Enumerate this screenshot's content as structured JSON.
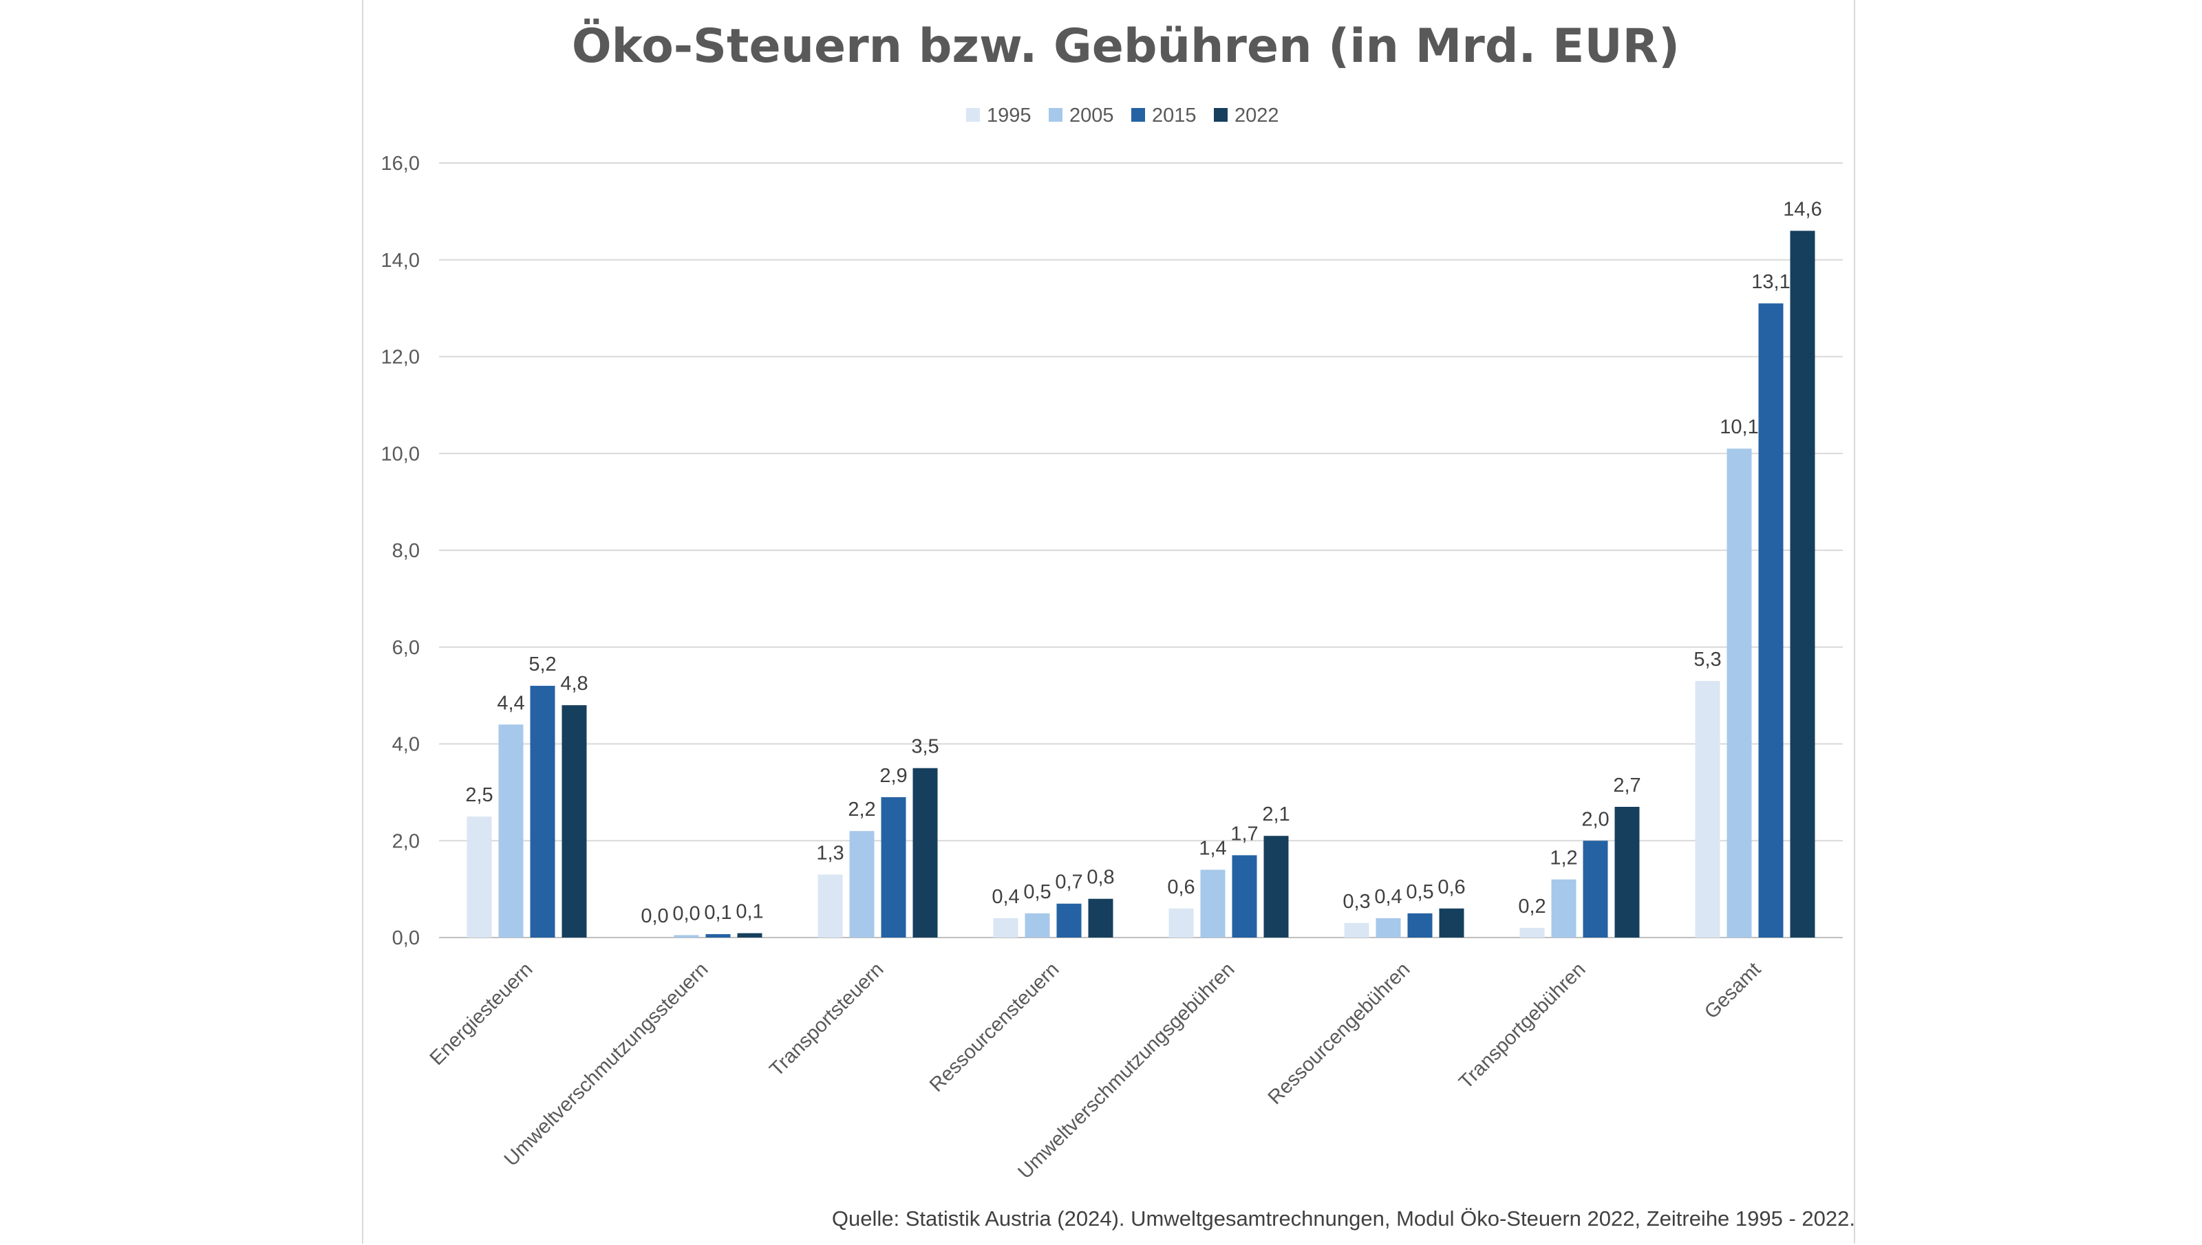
{
  "chart_data": {
    "type": "bar",
    "title": "Öko-Steuern bzw. Gebühren (in Mrd. EUR)",
    "categories": [
      "Energiesteuern",
      "Umweltverschmutzungssteuern",
      "Transportsteuern",
      "Ressourcensteuern",
      "Umweltverschmutzungsgebühren",
      "Ressourcengebühren",
      "Transportgebühren",
      "Gesamt"
    ],
    "series": [
      {
        "name": "1995",
        "color": "#dae6f4",
        "values": [
          2.5,
          0.0,
          1.3,
          0.4,
          0.6,
          0.3,
          0.2,
          5.3
        ],
        "labels": [
          "2,5",
          "0,0",
          "1,3",
          "0,4",
          "0,6",
          "0,3",
          "0,2",
          "5,3"
        ]
      },
      {
        "name": "2005",
        "color": "#a6c8ea",
        "values": [
          4.4,
          0.05,
          2.2,
          0.5,
          1.4,
          0.4,
          1.2,
          10.1
        ],
        "labels": [
          "4,4",
          "0,0",
          "2,2",
          "0,5",
          "1,4",
          "0,4",
          "1,2",
          "10,1"
        ]
      },
      {
        "name": "2015",
        "color": "#2462a3",
        "values": [
          5.2,
          0.07,
          2.9,
          0.7,
          1.7,
          0.5,
          2.0,
          13.1
        ],
        "labels": [
          "5,2",
          "0,1",
          "2,9",
          "0,7",
          "1,7",
          "0,5",
          "2,0",
          "13,1"
        ]
      },
      {
        "name": "2022",
        "color": "#163f5e",
        "values": [
          4.8,
          0.09,
          3.5,
          0.8,
          2.1,
          0.6,
          2.7,
          14.6
        ],
        "labels": [
          "4,8",
          "0,1",
          "3,5",
          "0,8",
          "2,1",
          "0,6",
          "2,7",
          "14,6"
        ]
      }
    ],
    "ylim": [
      0,
      16
    ],
    "yticks": [
      0,
      2,
      4,
      6,
      8,
      10,
      12,
      14,
      16
    ],
    "ytick_labels": [
      "0,0",
      "2,0",
      "4,0",
      "6,0",
      "8,0",
      "10,0",
      "12,0",
      "14,0",
      "16,0"
    ],
    "xlabel": "",
    "ylabel": "",
    "grid": true,
    "legend_position": "top-center"
  },
  "source_note": "Quelle: Statistik Austria (2024). Umweltgesamtrechnungen, Modul Öko-Steuern 2022, Zeitreihe 1995 - 2022."
}
